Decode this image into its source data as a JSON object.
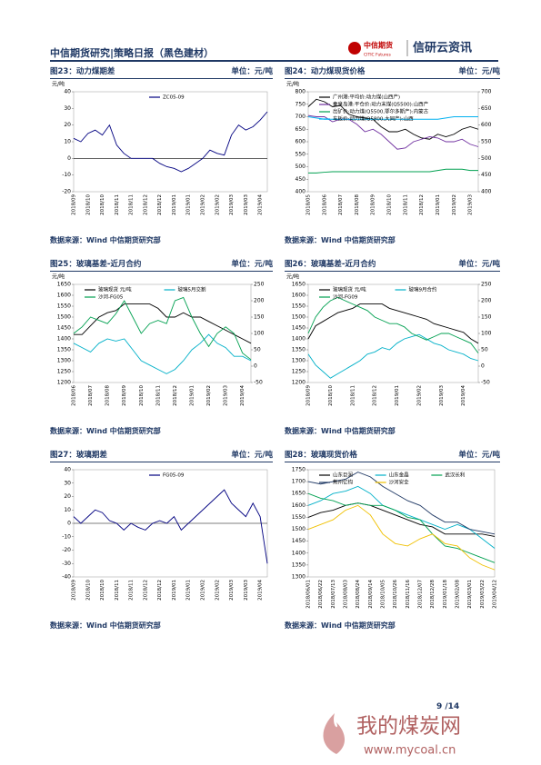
{
  "header": {
    "title": "中信期货研究|策略日报（黑色建材）",
    "logo_cn": "中信期货",
    "logo_en": "CITIC Futures",
    "brand": "信研云资讯"
  },
  "figures": [
    {
      "title": "图23：动力煤期差",
      "unit": "单位：元/吨",
      "source": "数据来源：Wind  中信期货研究部",
      "chart": {
        "type": "line",
        "y_label": "元/吨",
        "categories": [
          "2018/09",
          null,
          "2018/10",
          null,
          "2018/10",
          null,
          "2018/11",
          null,
          "2018/11",
          null,
          "2018/12",
          null,
          "2018/12",
          null,
          "2019/01",
          null,
          "2019/01",
          null,
          "2019/02",
          null,
          "2019/02",
          null,
          "2019/03",
          null,
          "2019/03",
          null,
          "2019/04",
          null
        ],
        "series": [
          {
            "name": "ZC05-09",
            "color": "#000080",
            "values": [
              12,
              10,
              15,
              17,
              14,
              20,
              8,
              3,
              0,
              0,
              0,
              0,
              -3,
              -5,
              -6,
              -8,
              -6,
              -3,
              0,
              5,
              3,
              2,
              14,
              20,
              17,
              19,
              23,
              28
            ]
          }
        ],
        "ylim": [
          -20,
          40
        ],
        "yticks": [
          -20,
          -10,
          0,
          10,
          20,
          30,
          40
        ]
      }
    },
    {
      "title": "图24：动力煤现货价格",
      "unit": "单位：元/吨",
      "source": "数据来源：Wind  中信期货研究部",
      "chart": {
        "type": "line",
        "y_label": "元/吨",
        "categories": [
          "2018/05",
          null,
          "2018/06",
          null,
          "2018/07",
          null,
          "2018/08",
          null,
          "2018/09",
          null,
          "2018/10",
          null,
          "2018/11",
          null,
          "2018/12",
          null,
          "2019/01",
          null,
          "2019/02",
          null,
          "2019/03",
          null
        ],
        "series": [
          {
            "name": "广州港:平均价:动力煤(山西产)",
            "color": "#000000",
            "values": [
              740,
              770,
              760,
              740,
              745,
              710,
              700,
              695,
              690,
              660,
              640,
              640,
              650,
              630,
              615,
              610,
              630,
              620,
              630,
              650,
              660,
              650
            ]
          },
          {
            "name": "秦皇岛港:平仓价:动力末煤(Q5500):山西产",
            "color": "#7030a0",
            "values": [
              705,
              700,
              700,
              680,
              690,
              690,
              670,
              640,
              650,
              630,
              600,
              570,
              575,
              600,
              610,
              620,
              615,
              600,
              600,
              610,
              590,
              580
            ]
          },
          {
            "name": "出矿价:动力煤(Q5500,鄂尔多斯产):内蒙古",
            "color": "#00a050",
            "values": [
              475,
              475,
              478,
              480,
              480,
              480,
              480,
              480,
              480,
              480,
              480,
              480,
              480,
              480,
              480,
              480,
              485,
              490,
              490,
              490,
              485,
              485
            ]
          },
          {
            "name": "车板价:动力煤(Q5800,大同产):山西",
            "color": "#00b0f0",
            "values": [
              700,
              695,
              690,
              690,
              690,
              690,
              690,
              690,
              690,
              690,
              690,
              690,
              690,
              690,
              690,
              690,
              690,
              695,
              700,
              700,
              700,
              700
            ]
          }
        ],
        "ylim": [
          400,
          800
        ],
        "yticks": [
          400,
          450,
          500,
          550,
          600,
          650,
          700,
          750,
          800
        ],
        "y2lim": [
          400,
          700
        ],
        "y2ticks": [
          400,
          450,
          500,
          550,
          600,
          650,
          700
        ]
      }
    },
    {
      "title": "图25：玻璃基差-近月合约",
      "unit": "单位：元/吨",
      "source": "数据来源：Wind  中信期货研究部",
      "chart": {
        "type": "line",
        "y_label": "元/吨",
        "categories": [
          "2018/06",
          null,
          "2018/07",
          null,
          "2018/08",
          null,
          "2018/09",
          null,
          "2018/10",
          null,
          "2018/11",
          null,
          "2018/12",
          null,
          "2019/01",
          null,
          "2019/02",
          null,
          "2019/03",
          null,
          "2019/04",
          null
        ],
        "series": [
          {
            "name": "玻璃现货 元/吨",
            "color": "#000000",
            "values": [
              1420,
              1420,
              1460,
              1500,
              1520,
              1530,
              1560,
              1560,
              1560,
              1560,
              1540,
              1500,
              1500,
              1520,
              1500,
              1500,
              1480,
              1460,
              1440,
              1420,
              1400,
              1380
            ]
          },
          {
            "name": "玻璃5月交割",
            "color": "#00b0c8",
            "values": [
              1380,
              1360,
              1340,
              1380,
              1400,
              1390,
              1400,
              1350,
              1300,
              1280,
              1260,
              1240,
              1260,
              1300,
              1350,
              1380,
              1420,
              1380,
              1360,
              1320,
              1320,
              1300
            ]
          },
          {
            "name": "沙河-FG05",
            "color": "#00a050",
            "axis": "y2",
            "values": [
              100,
              120,
              150,
              140,
              130,
              160,
              200,
              150,
              100,
              130,
              140,
              130,
              200,
              210,
              150,
              100,
              60,
              100,
              120,
              100,
              40,
              20
            ]
          }
        ],
        "ylim": [
          1200,
          1650
        ],
        "yticks": [
          1200,
          1250,
          1300,
          1350,
          1400,
          1450,
          1500,
          1550,
          1600,
          1650
        ],
        "y2lim": [
          -50,
          250
        ],
        "y2ticks": [
          -50,
          0,
          50,
          100,
          150,
          200,
          250
        ]
      }
    },
    {
      "title": "图26：玻璃基差-近月合约",
      "unit": "单位：元/吨",
      "source": "数据来源：Wind  中信期货研究部",
      "chart": {
        "type": "line",
        "y_label": "元/吨",
        "categories": [
          "2018/09",
          null,
          null,
          "2018/10",
          null,
          null,
          "2018/11",
          null,
          null,
          "2018/12",
          null,
          null,
          "2019/01",
          null,
          null,
          "2019/02",
          null,
          null,
          "2019/03",
          null,
          null,
          "2019/04",
          null,
          null
        ],
        "series": [
          {
            "name": "玻璃现货 元/吨",
            "color": "#000000",
            "values": [
              1400,
              1460,
              1480,
              1500,
              1520,
              1530,
              1540,
              1560,
              1560,
              1560,
              1560,
              1540,
              1530,
              1520,
              1510,
              1500,
              1490,
              1470,
              1460,
              1450,
              1440,
              1430,
              1400,
              1380
            ]
          },
          {
            "name": "玻璃9月合约",
            "color": "#00b0c8",
            "values": [
              1330,
              1280,
              1250,
              1220,
              1240,
              1260,
              1280,
              1300,
              1330,
              1340,
              1360,
              1350,
              1380,
              1400,
              1410,
              1420,
              1400,
              1380,
              1370,
              1350,
              1340,
              1330,
              1310,
              1300
            ]
          },
          {
            "name": "沙河-FG09",
            "color": "#00a050",
            "axis": "y2",
            "values": [
              100,
              150,
              180,
              200,
              210,
              200,
              190,
              180,
              170,
              150,
              140,
              130,
              130,
              120,
              100,
              90,
              80,
              90,
              100,
              100,
              90,
              80,
              70,
              40
            ]
          }
        ],
        "ylim": [
          1200,
          1650
        ],
        "yticks": [
          1200,
          1250,
          1300,
          1350,
          1400,
          1450,
          1500,
          1550,
          1600,
          1650
        ],
        "y2lim": [
          -50,
          250
        ],
        "y2ticks": [
          -50,
          0,
          50,
          100,
          150,
          200,
          250
        ]
      }
    },
    {
      "title": "图27：玻璃期差",
      "unit": "单位：元/吨",
      "source": "数据来源：Wind  中信期货研究部",
      "chart": {
        "type": "line",
        "categories": [
          "2018/09",
          null,
          "2018/10",
          null,
          "2018/10",
          null,
          "2018/11",
          null,
          "2018/11",
          null,
          "2018/12",
          null,
          "2018/12",
          null,
          "2019/01",
          null,
          "2019/01",
          null,
          "2019/02",
          null,
          "2019/02",
          null,
          "2019/03",
          null,
          "2019/03",
          null,
          "2019/04",
          null
        ],
        "series": [
          {
            "name": "FG05-09",
            "color": "#000080",
            "values": [
              5,
              0,
              5,
              10,
              8,
              2,
              0,
              -5,
              0,
              -3,
              -5,
              0,
              2,
              0,
              5,
              -5,
              0,
              5,
              10,
              15,
              20,
              25,
              15,
              10,
              5,
              15,
              5,
              -30
            ]
          }
        ],
        "ylim": [
          -40,
          40
        ],
        "yticks": [
          -40,
          -30,
          -20,
          -10,
          0,
          10,
          20,
          30,
          40
        ]
      }
    },
    {
      "title": "图28：玻璃现货价格",
      "unit": "单位：元/吨",
      "source": "数据来源：Wind  中信期货研究部",
      "chart": {
        "type": "line",
        "categories": [
          "2018/06/01",
          "2018/06/22",
          "2018/07/13",
          "2018/08/03",
          "2018/08/24",
          "2018/09/14",
          "2018/10/05",
          "2018/10/26",
          "2018/11/16",
          "2018/12/07",
          "2018/12/28",
          "2019/01/18",
          "2019/02/08",
          "2019/03/01",
          "2019/03/22",
          "2019/04/12"
        ],
        "series": [
          {
            "name": "山东巨润",
            "color": "#000000",
            "values": [
              1550,
              1570,
              1580,
              1600,
              1610,
              1600,
              1580,
              1560,
              1540,
              1520,
              1510,
              1480,
              1480,
              1480,
              1480,
              1470
            ]
          },
          {
            "name": "山东金晶",
            "color": "#00b0c8",
            "values": [
              1600,
              1620,
              1650,
              1660,
              1680,
              1650,
              1600,
              1580,
              1560,
              1540,
              1520,
              1500,
              1520,
              1500,
              1460,
              1420
            ]
          },
          {
            "name": "武汉长利",
            "color": "#00a050",
            "values": [
              1650,
              1630,
              1620,
              1600,
              1610,
              1600,
              1600,
              1580,
              1550,
              1540,
              1480,
              1430,
              1420,
              1400,
              1380,
              1360
            ]
          },
          {
            "name": "荆州亿钧",
            "color": "#1f3864",
            "values": [
              1700,
              1690,
              1700,
              1710,
              1740,
              1720,
              1680,
              1650,
              1620,
              1600,
              1560,
              1530,
              1530,
              1500,
              1490,
              1480
            ]
          },
          {
            "name": "沙河安全",
            "color": "#f0c000",
            "values": [
              1500,
              1520,
              1540,
              1580,
              1600,
              1560,
              1480,
              1440,
              1430,
              1460,
              1480,
              1440,
              1430,
              1380,
              1350,
              1330
            ]
          }
        ],
        "ylim": [
          1300,
          1750
        ],
        "yticks": [
          1300,
          1350,
          1400,
          1450,
          1500,
          1550,
          1600,
          1650,
          1700,
          1750
        ]
      }
    }
  ],
  "footer": {
    "page": "9 /14",
    "watermark": "我的煤炭网",
    "watermark_url": "www.mycoal.cn"
  }
}
